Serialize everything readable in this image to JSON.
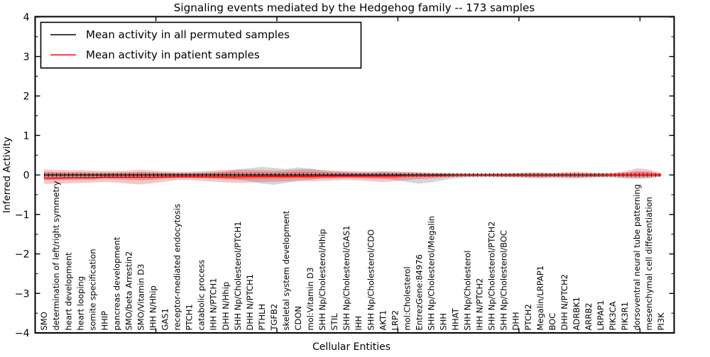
{
  "figure": {
    "title": "Signaling events mediated by the Hedgehog family -- 173 samples",
    "background_color": "#ffffff",
    "frame_color": "#000000"
  },
  "legend": {
    "position": "upper left",
    "entries": [
      {
        "label": "Mean activity in all permuted samples",
        "color": "#000000"
      },
      {
        "label": "Mean activity in patient samples",
        "color": "#ff0000"
      }
    ]
  },
  "chart_data": {
    "type": "line",
    "title": "Signaling events mediated by the Hedgehog family -- 173 samples",
    "xlabel": "Cellular Entities",
    "ylabel": "Inferred Activity",
    "ylim": [
      -4,
      4
    ],
    "yticks": [
      4,
      3,
      2,
      1,
      0,
      -1,
      -2,
      -3,
      -4
    ],
    "grid": false,
    "legend_position": "upper left",
    "categories": [
      "SMO",
      "determination of left/right symmetry",
      "heart development",
      "heart looping",
      "somite specification",
      "HHIP",
      "pancreas development",
      "SMO/beta Arrestin2",
      "SMO/Vitamin D3",
      "IHH N/Hhip",
      "GAS1",
      "receptor-mediated endocytosis",
      "PTCH1",
      "catabolic process",
      "IHH N/PTCH1",
      "DHH N/Hhip",
      "SHH Np/Cholesterol/PTCH1",
      "DHH N/PTCH1",
      "PTHLH",
      "TGFB2",
      "skeletal system development",
      "CDON",
      "mol:Vitamin D3",
      "SHH Np/Cholesterol/Hhip",
      "STIL",
      "SHH Np/Cholesterol/GAS1",
      "IHH",
      "SHH Np/Cholesterol/CDO",
      "AKT1",
      "LRP2",
      "mol:Cholesterol",
      "EntrezGene:84976",
      "SHH Np/Cholesterol/Megalin",
      "SHH",
      "HHAT",
      "SHH Np/Cholesterol",
      "IHH N/PTCH2",
      "SHH Np/Cholesterol/PTCH2",
      "SHH Np/Cholesterol/BOC",
      "DHH",
      "PTCH2",
      "Megalin/LRPAP1",
      "BOC",
      "DHH N/PTCH2",
      "ADRBK1",
      "ARRB2",
      "LRPAP1",
      "PIK3CA",
      "PIK3R1",
      "dorsoventral neural tube patterning",
      "mesenchymal cell differentiation",
      "PI3K"
    ],
    "series": [
      {
        "name": "Mean activity in all permuted samples",
        "color": "#000000",
        "values": [
          0,
          0,
          0,
          0,
          0,
          0,
          0,
          0,
          0,
          0,
          0,
          0,
          0,
          0,
          0,
          0,
          0,
          0,
          0,
          0,
          0,
          0,
          0,
          0,
          0,
          0,
          0,
          0,
          0,
          0,
          0,
          0,
          0,
          0,
          0,
          0,
          0,
          0,
          0,
          0,
          0,
          0,
          0,
          0,
          0,
          0,
          0,
          0,
          0,
          0,
          0,
          0
        ]
      },
      {
        "name": "Mean activity in patient samples",
        "color": "#ff0000",
        "values": [
          -0.08,
          -0.08,
          -0.07,
          -0.07,
          -0.07,
          -0.06,
          -0.06,
          -0.06,
          -0.06,
          -0.06,
          -0.05,
          -0.05,
          -0.05,
          -0.05,
          -0.05,
          -0.05,
          -0.05,
          -0.04,
          -0.04,
          -0.04,
          -0.04,
          -0.04,
          -0.04,
          -0.03,
          -0.03,
          -0.03,
          -0.03,
          -0.03,
          -0.03,
          -0.03,
          -0.02,
          -0.02,
          -0.02,
          -0.02,
          -0.01,
          -0.01,
          -0.01,
          -0.01,
          -0.01,
          -0.01,
          -0.01,
          -0.01,
          -0.01,
          -0.01,
          -0.01,
          -0.01,
          -0.01,
          0,
          0,
          0,
          0,
          0
        ]
      }
    ],
    "bands": [
      {
        "name": "permuted-samples-std",
        "color": "rgba(128,128,128,0.32)",
        "upper": [
          0.06,
          0.06,
          0.06,
          0.05,
          0.05,
          0.05,
          0.06,
          0.06,
          0.07,
          0.06,
          0.06,
          0.05,
          0.05,
          0.06,
          0.07,
          0.09,
          0.14,
          0.17,
          0.2,
          0.18,
          0.15,
          0.19,
          0.16,
          0.11,
          0.08,
          0.07,
          0.06,
          0.06,
          0.07,
          0.07,
          0.06,
          0.06,
          0.05,
          0.05,
          0.05,
          0.05,
          0.05,
          0.05,
          0.05,
          0.05,
          0.06,
          0.06,
          0.05,
          0.05,
          0.06,
          0.05,
          0.05,
          0.05,
          0.07,
          0.08,
          0.07,
          0.04
        ],
        "lower": [
          -0.07,
          -0.07,
          -0.06,
          -0.06,
          -0.06,
          -0.06,
          -0.06,
          -0.07,
          -0.07,
          -0.07,
          -0.06,
          -0.06,
          -0.06,
          -0.06,
          -0.07,
          -0.08,
          -0.12,
          -0.16,
          -0.22,
          -0.25,
          -0.2,
          -0.15,
          -0.12,
          -0.09,
          -0.08,
          -0.07,
          -0.07,
          -0.07,
          -0.08,
          -0.13,
          -0.18,
          -0.22,
          -0.19,
          -0.13,
          -0.08,
          -0.06,
          -0.05,
          -0.05,
          -0.06,
          -0.06,
          -0.07,
          -0.07,
          -0.06,
          -0.06,
          -0.07,
          -0.06,
          -0.06,
          -0.06,
          -0.08,
          -0.09,
          -0.08,
          -0.04
        ]
      },
      {
        "name": "patient-samples-std-outer",
        "color": "rgba(225,50,50,0.28)",
        "upper": [
          0.14,
          0.13,
          0.12,
          0.12,
          0.11,
          0.1,
          0.1,
          0.11,
          0.13,
          0.11,
          0.09,
          0.08,
          0.08,
          0.09,
          0.11,
          0.13,
          0.14,
          0.13,
          0.12,
          0.11,
          0.12,
          0.14,
          0.15,
          0.13,
          0.11,
          0.1,
          0.09,
          0.09,
          0.1,
          0.09,
          0.08,
          0.07,
          0.06,
          0.05,
          0.04,
          0.03,
          0.03,
          0.03,
          0.04,
          0.05,
          0.06,
          0.06,
          0.05,
          0.07,
          0.08,
          0.06,
          0.05,
          0.05,
          0.09,
          0.17,
          0.14,
          0.04
        ],
        "lower": [
          -0.23,
          -0.22,
          -0.21,
          -0.2,
          -0.19,
          -0.18,
          -0.19,
          -0.22,
          -0.24,
          -0.21,
          -0.17,
          -0.13,
          -0.13,
          -0.15,
          -0.17,
          -0.19,
          -0.2,
          -0.19,
          -0.18,
          -0.17,
          -0.16,
          -0.15,
          -0.16,
          -0.15,
          -0.14,
          -0.13,
          -0.14,
          -0.16,
          -0.18,
          -0.16,
          -0.13,
          -0.11,
          -0.09,
          -0.07,
          -0.05,
          -0.04,
          -0.04,
          -0.04,
          -0.05,
          -0.06,
          -0.07,
          -0.08,
          -0.07,
          -0.08,
          -0.09,
          -0.07,
          -0.06,
          -0.06,
          -0.08,
          -0.09,
          -0.08,
          -0.04
        ]
      },
      {
        "name": "patient-samples-std-inner",
        "color": "rgba(225,50,50,0.34)",
        "upper": [
          0.08,
          0.07,
          0.07,
          0.07,
          0.06,
          0.06,
          0.06,
          0.06,
          0.07,
          0.06,
          0.05,
          0.04,
          0.04,
          0.05,
          0.06,
          0.07,
          0.08,
          0.07,
          0.07,
          0.06,
          0.07,
          0.08,
          0.08,
          0.07,
          0.06,
          0.06,
          0.05,
          0.05,
          0.06,
          0.05,
          0.04,
          0.04,
          0.03,
          0.03,
          0.02,
          0.02,
          0.02,
          0.02,
          0.02,
          0.03,
          0.03,
          0.03,
          0.03,
          0.04,
          0.04,
          0.03,
          0.03,
          0.03,
          0.05,
          0.09,
          0.08,
          0.02
        ],
        "lower": [
          -0.13,
          -0.12,
          -0.12,
          -0.11,
          -0.11,
          -0.1,
          -0.11,
          -0.12,
          -0.13,
          -0.12,
          -0.09,
          -0.07,
          -0.07,
          -0.08,
          -0.09,
          -0.11,
          -0.11,
          -0.11,
          -0.1,
          -0.09,
          -0.09,
          -0.08,
          -0.09,
          -0.08,
          -0.08,
          -0.07,
          -0.08,
          -0.09,
          -0.1,
          -0.09,
          -0.07,
          -0.06,
          -0.05,
          -0.04,
          -0.03,
          -0.02,
          -0.02,
          -0.02,
          -0.03,
          -0.03,
          -0.04,
          -0.04,
          -0.04,
          -0.04,
          -0.05,
          -0.04,
          -0.03,
          -0.03,
          -0.04,
          -0.05,
          -0.04,
          -0.02
        ]
      }
    ]
  }
}
